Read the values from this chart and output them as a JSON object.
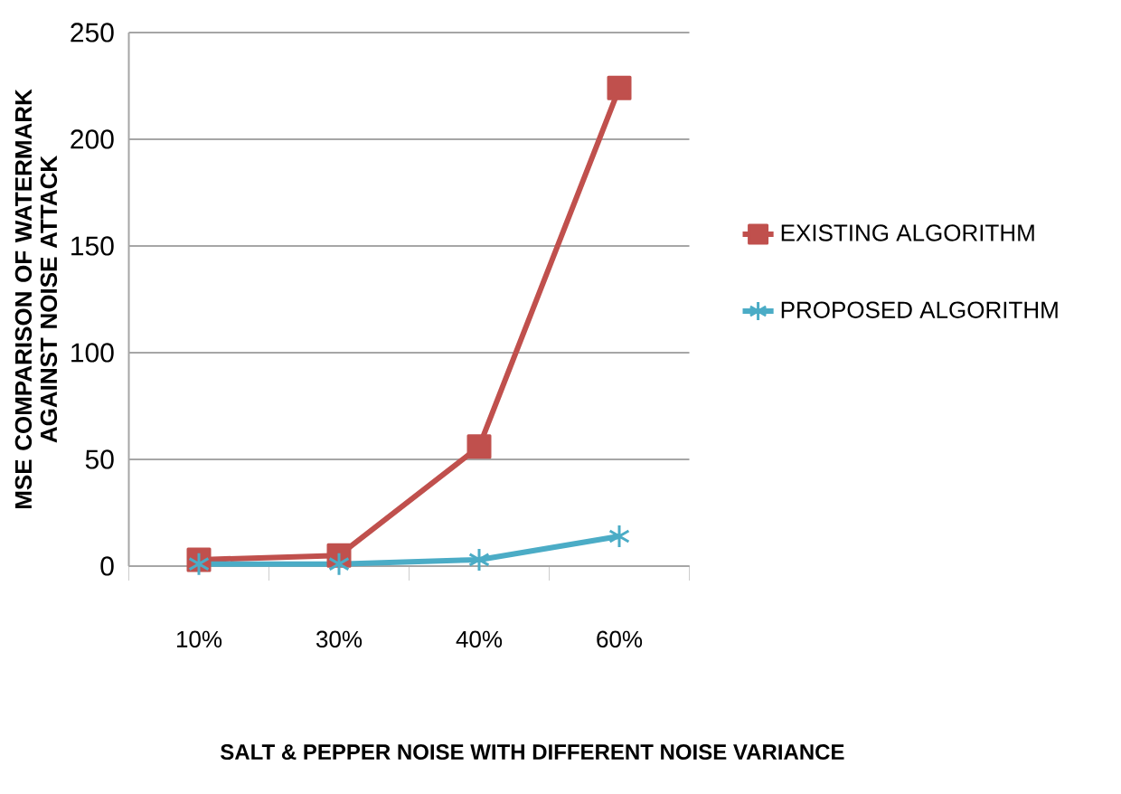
{
  "chart_data": {
    "type": "line",
    "xlabel": "SALT & PEPPER NOISE WITH DIFFERENT NOISE VARIANCE",
    "ylabel": "MSE COMPARISON OF WATERMARK AGAINST NOISE ATTACK",
    "categories": [
      "10%",
      "30%",
      "40%",
      "60%"
    ],
    "series": [
      {
        "name": "EXISTING ALGORITHM",
        "color": "#c0504d",
        "marker": "square",
        "values": [
          3,
          5,
          56,
          224
        ]
      },
      {
        "name": "PROPOSED ALGORITHM",
        "color": "#4bacc6",
        "marker": "cross",
        "values": [
          1,
          1,
          3,
          14
        ]
      }
    ],
    "ylim": [
      0,
      250
    ],
    "yticks": [
      0,
      50,
      100,
      150,
      200,
      250
    ],
    "grid": "y",
    "legend": "right"
  }
}
